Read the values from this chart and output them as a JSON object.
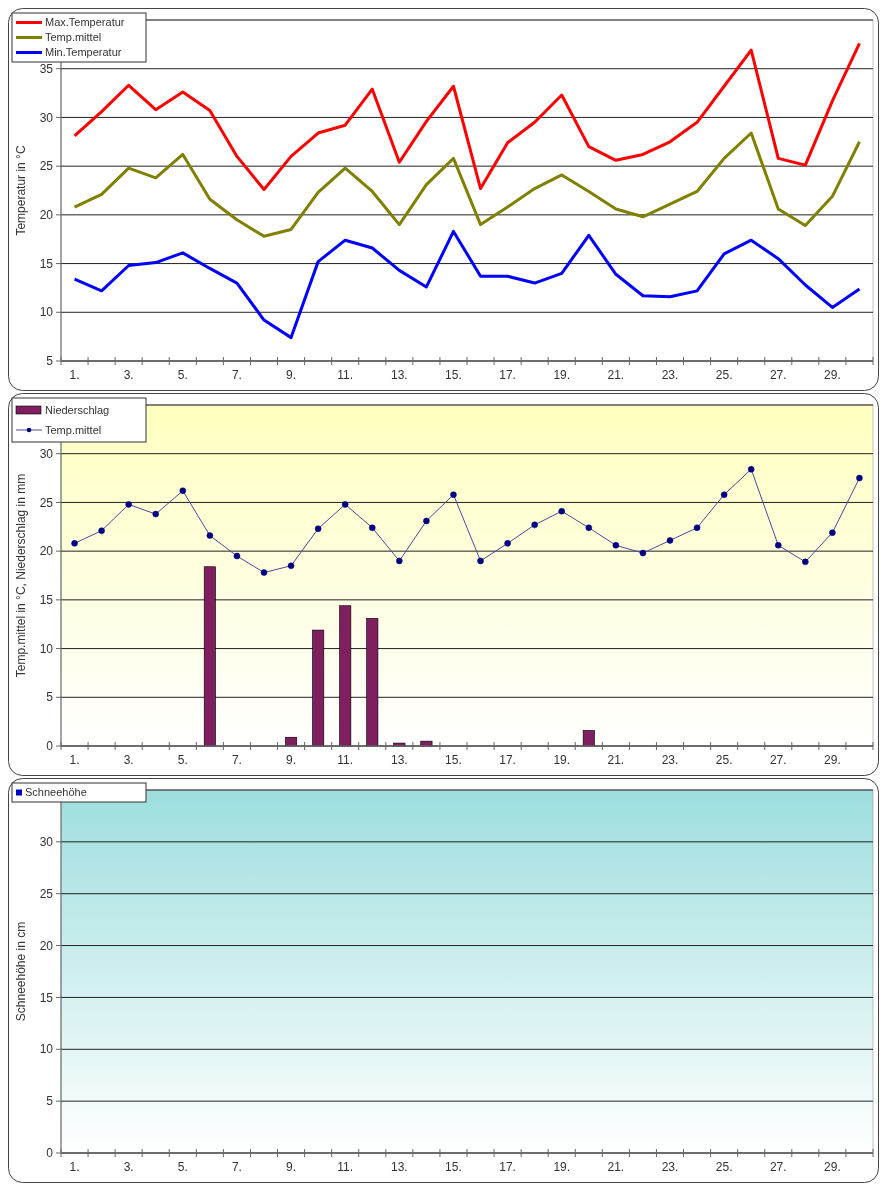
{
  "chart_data": [
    {
      "type": "line",
      "ylabel": "Temperatur  in °C",
      "categories": [
        "1.",
        null,
        "3.",
        null,
        "5.",
        null,
        "7.",
        null,
        "9.",
        null,
        "11.",
        null,
        "13.",
        null,
        "15.",
        null,
        "17.",
        null,
        "19.",
        null,
        "21.",
        null,
        "23.",
        null,
        "25.",
        null,
        "27.",
        null,
        "29.",
        null
      ],
      "ylim": [
        5,
        40
      ],
      "yticks": [
        5,
        10,
        15,
        20,
        25,
        30,
        35
      ],
      "grid": "y",
      "legend": "top left",
      "series": [
        {
          "name": "Max.Temperatur",
          "color": "#ff0000",
          "values": [
            28.1,
            30.6,
            33.3,
            30.8,
            32.6,
            30.7,
            26.0,
            22.6,
            26.0,
            28.4,
            29.2,
            32.9,
            25.4,
            29.6,
            33.2,
            22.7,
            27.4,
            29.5,
            32.3,
            27.0,
            25.6,
            26.2,
            27.5,
            29.5,
            33.2,
            36.9,
            25.8,
            25.1,
            31.7,
            37.6
          ]
        },
        {
          "name": "Temp.mittel",
          "color": "#808000",
          "values": [
            20.8,
            22.1,
            24.8,
            23.8,
            26.2,
            21.6,
            19.5,
            17.8,
            18.5,
            22.3,
            24.8,
            22.4,
            19.0,
            23.1,
            25.8,
            19.0,
            20.8,
            22.7,
            24.1,
            22.4,
            20.6,
            19.8,
            21.1,
            22.4,
            25.8,
            28.4,
            20.6,
            18.9,
            21.9,
            27.5
          ]
        },
        {
          "name": "Min.Temperatur",
          "color": "#0000ff",
          "values": [
            13.4,
            12.2,
            14.8,
            15.1,
            16.1,
            14.5,
            13.0,
            9.2,
            7.4,
            15.2,
            17.4,
            16.6,
            14.3,
            12.6,
            18.3,
            13.7,
            13.7,
            13.0,
            14.0,
            17.9,
            13.9,
            11.7,
            11.6,
            12.2,
            16.0,
            17.4,
            15.5,
            12.8,
            10.5,
            12.4
          ]
        }
      ]
    },
    {
      "type": "bar",
      "ylabel": "Temp.mittel  in °C, Niederschlag in mm",
      "categories": [
        "1.",
        null,
        "3.",
        null,
        "5.",
        null,
        "7.",
        null,
        "9.",
        null,
        "11.",
        null,
        "13.",
        null,
        "15.",
        null,
        "17.",
        null,
        "19.",
        null,
        "21.",
        null,
        "23.",
        null,
        "25.",
        null,
        "27.",
        null,
        "29.",
        null
      ],
      "ylim": [
        0,
        35
      ],
      "yticks": [
        0,
        5,
        10,
        15,
        20,
        25,
        30
      ],
      "grid": "y",
      "legend": "top left",
      "series": [
        {
          "name": "Niederschlag",
          "color": "#7f1f5f",
          "values": [
            0,
            0,
            0,
            0,
            0,
            18.4,
            0,
            0,
            0.9,
            11.9,
            14.4,
            13.1,
            0.3,
            0.5,
            0,
            0,
            0,
            0,
            0,
            1.6,
            0,
            0,
            0,
            0,
            0,
            0,
            0,
            0,
            0,
            0
          ]
        },
        {
          "name": "Temp.mittel",
          "type": "line",
          "marker": "circle",
          "color": "#4a4a9e",
          "values": [
            20.8,
            22.1,
            24.8,
            23.8,
            26.2,
            21.6,
            19.5,
            17.8,
            18.5,
            22.3,
            24.8,
            22.4,
            19.0,
            23.1,
            25.8,
            19.0,
            20.8,
            22.7,
            24.1,
            22.4,
            20.6,
            19.8,
            21.1,
            22.4,
            25.8,
            28.4,
            20.6,
            18.9,
            21.9,
            27.5
          ]
        }
      ]
    },
    {
      "type": "bar",
      "ylabel": "Schneehöhe in cm",
      "categories": [
        "1.",
        null,
        "3.",
        null,
        "5.",
        null,
        "7.",
        null,
        "9.",
        null,
        "11.",
        null,
        "13.",
        null,
        "15.",
        null,
        "17.",
        null,
        "19.",
        null,
        "21.",
        null,
        "23.",
        null,
        "25.",
        null,
        "27.",
        null,
        "29.",
        null
      ],
      "ylim": [
        0,
        35
      ],
      "yticks": [
        0,
        5,
        10,
        15,
        20,
        25,
        30
      ],
      "grid": "y",
      "legend": "top left",
      "series": [
        {
          "name": "Schneehöhe",
          "color": "#0000c0",
          "values": [
            0,
            0,
            0,
            0,
            0,
            0,
            0,
            0,
            0,
            0,
            0,
            0,
            0,
            0,
            0,
            0,
            0,
            0,
            0,
            0,
            0,
            0,
            0,
            0,
            0,
            0,
            0,
            0,
            0,
            0
          ]
        }
      ]
    }
  ]
}
